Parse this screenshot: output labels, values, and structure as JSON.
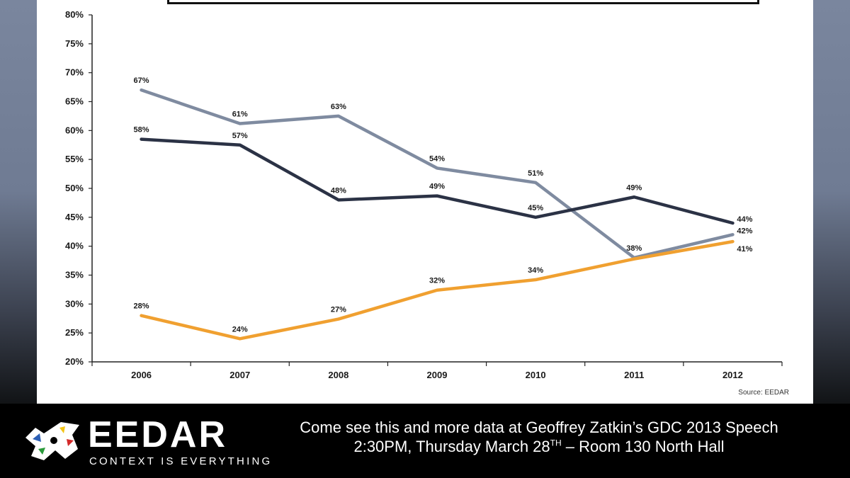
{
  "chart_data": {
    "type": "line",
    "categories": [
      "2006",
      "2007",
      "2008",
      "2009",
      "2010",
      "2011",
      "2012"
    ],
    "ylim": [
      0.2,
      0.8
    ],
    "yticks": [
      "20%",
      "25%",
      "30%",
      "35%",
      "40%",
      "45%",
      "50%",
      "55%",
      "60%",
      "65%",
      "70%",
      "75%",
      "80%"
    ],
    "grid": false,
    "series": [
      {
        "color": "#7f8ba0",
        "values": [
          0.67,
          0.612,
          0.625,
          0.535,
          0.51,
          0.38,
          0.42
        ],
        "labels": [
          "67%",
          "61%",
          "63%",
          "54%",
          "51%",
          "38%",
          "42%"
        ],
        "label_pos": [
          "above",
          "above",
          "above",
          "above",
          "above",
          "above",
          "right"
        ]
      },
      {
        "color": "#2b3245",
        "values": [
          0.585,
          0.575,
          0.48,
          0.487,
          0.45,
          0.485,
          0.44
        ],
        "labels": [
          "58%",
          "57%",
          "48%",
          "49%",
          "45%",
          "49%",
          "44%"
        ],
        "label_pos": [
          "above",
          "above",
          "above",
          "above",
          "above",
          "above",
          "right"
        ]
      },
      {
        "color": "#f0a030",
        "values": [
          0.28,
          0.24,
          0.274,
          0.324,
          0.342,
          0.378,
          0.408
        ],
        "labels": [
          "28%",
          "24%",
          "27%",
          "32%",
          "34%",
          "",
          "41%"
        ],
        "label_pos": [
          "above",
          "above",
          "above",
          "above",
          "above",
          "above",
          "right-below"
        ]
      }
    ]
  },
  "source": "Source: EEDAR",
  "footer": {
    "brand": "EEDAR",
    "tagline": "CONTEXT IS EVERYTHING",
    "promo_line1": "Come see this and more data at Geoffrey Zatkin’s GDC 2013 Speech",
    "promo_line2_a": "2:30PM, Thursday March 28",
    "promo_line2_sup": "TH",
    "promo_line2_b": " – Room 130 North Hall"
  }
}
